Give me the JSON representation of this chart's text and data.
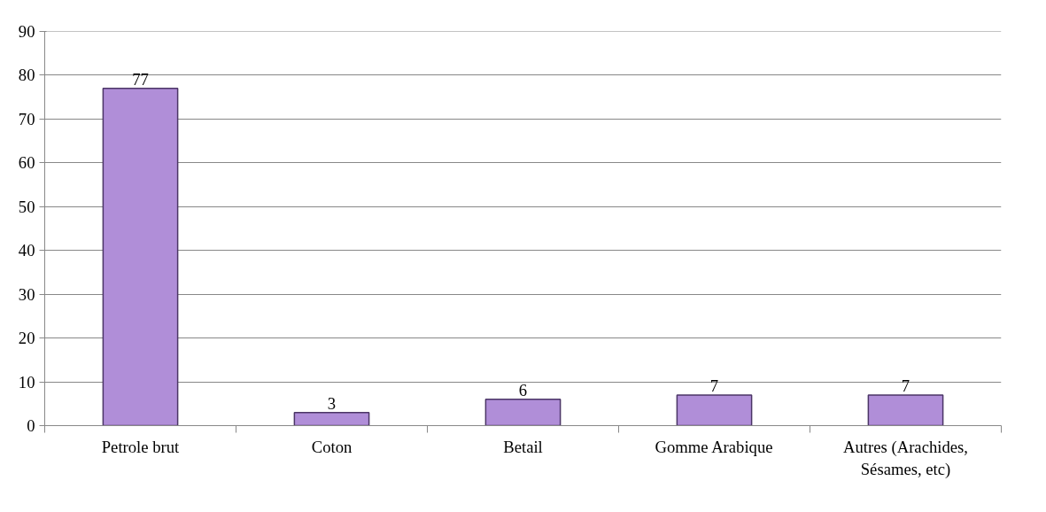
{
  "chart_data": {
    "type": "bar",
    "categories": [
      "Petrole brut",
      "Coton",
      "Betail",
      "Gomme Arabique",
      "Autres (Arachides, Sésames, etc)"
    ],
    "values": [
      77,
      3,
      6,
      7,
      7
    ],
    "color": "#b08ed8",
    "ylim": [
      0,
      90
    ],
    "yticks": [
      0,
      10,
      20,
      30,
      40,
      50,
      60,
      70,
      80,
      90
    ],
    "grid": "y",
    "data_labels": true
  }
}
